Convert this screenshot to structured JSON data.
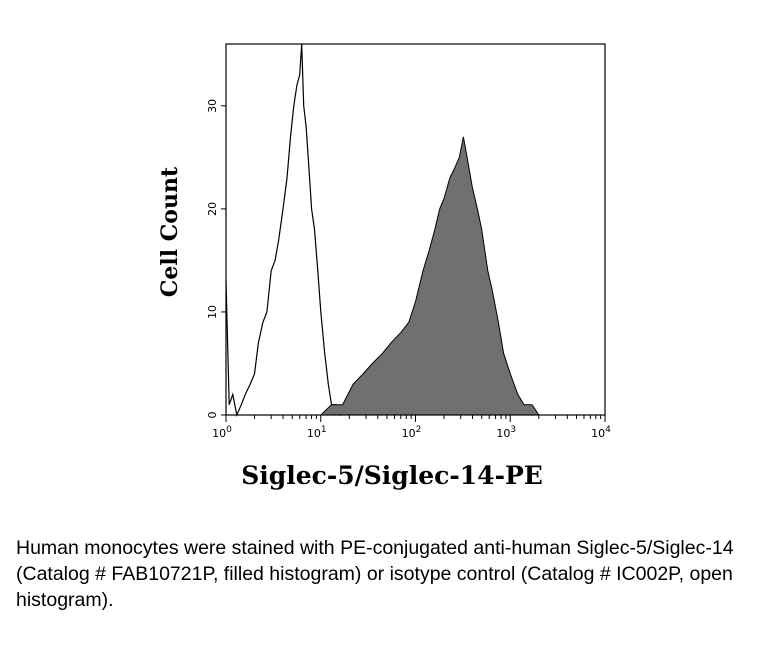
{
  "chart_data": {
    "type": "area",
    "title": "",
    "xlabel": "Siglec-5/Siglec-14-PE",
    "ylabel": "Cell Count",
    "x_scale": "log",
    "xlim": [
      1,
      10000
    ],
    "ylim": [
      0,
      36
    ],
    "x_ticks": [
      {
        "value": 1,
        "base": "10",
        "exp": "0"
      },
      {
        "value": 10,
        "base": "10",
        "exp": "1"
      },
      {
        "value": 100,
        "base": "10",
        "exp": "2"
      },
      {
        "value": 1000,
        "base": "10",
        "exp": "3"
      },
      {
        "value": 10000,
        "base": "10",
        "exp": "4"
      }
    ],
    "y_ticks": [
      "0",
      "10",
      "20",
      "30"
    ],
    "grid": false,
    "series": [
      {
        "name": "isotype control (Catalog # IC002P)",
        "style": "open",
        "color": "#000000",
        "x": [
          1.0,
          1.08,
          1.18,
          1.3,
          1.45,
          1.6,
          1.8,
          2.0,
          2.2,
          2.45,
          2.7,
          3.0,
          3.3,
          3.6,
          4.0,
          4.4,
          4.8,
          5.2,
          5.6,
          6.0,
          6.3,
          6.6,
          7.0,
          7.5,
          8.0,
          8.6,
          9.3,
          10.0,
          11.0,
          12.0,
          13.0,
          14.5,
          16.0,
          18.0,
          20.0
        ],
        "y": [
          13,
          1,
          2,
          0,
          1,
          2,
          3,
          4,
          7,
          9,
          10,
          14,
          15,
          17,
          20,
          23,
          27,
          30,
          32,
          33,
          36,
          30,
          28,
          24,
          20,
          18,
          14,
          10,
          6,
          3,
          1,
          1,
          0,
          1,
          0
        ]
      },
      {
        "name": "Siglec-5/Siglec-14 (Catalog # FAB10721P)",
        "style": "filled",
        "color": "#707070",
        "x": [
          10,
          13,
          17,
          22,
          28,
          35,
          45,
          55,
          70,
          85,
          100,
          120,
          140,
          160,
          180,
          200,
          230,
          260,
          290,
          320,
          350,
          400,
          450,
          500,
          580,
          650,
          750,
          850,
          1000,
          1200,
          1400,
          1700,
          2000,
          2200
        ],
        "y": [
          0,
          1,
          1,
          3,
          4,
          5,
          6,
          7,
          8,
          9,
          11,
          14,
          16,
          18,
          20,
          21,
          23,
          24,
          25,
          27,
          25,
          22,
          20,
          18,
          14,
          12,
          9,
          6,
          4,
          2,
          1,
          1,
          0,
          0
        ]
      }
    ]
  },
  "caption": "Human monocytes were stained with PE-conjugated anti-human Siglec-5/Siglec-14 (Catalog # FAB10721P, filled histogram) or isotype control (Catalog # IC002P, open histogram)."
}
